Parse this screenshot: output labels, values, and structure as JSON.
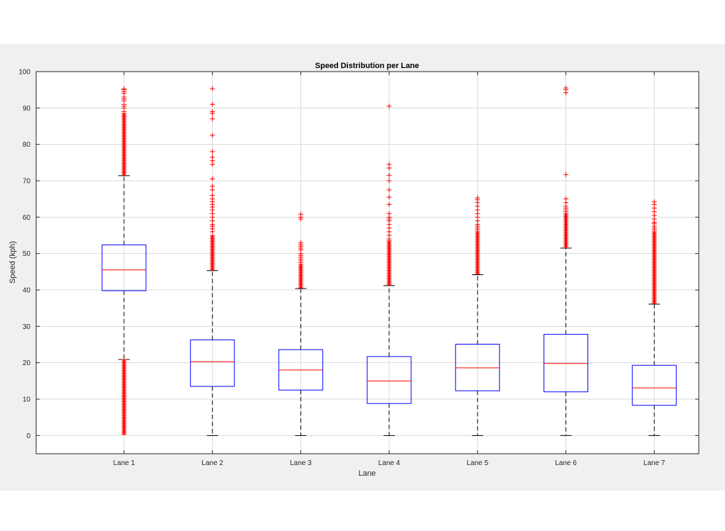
{
  "chart_data": {
    "type": "box",
    "title": "Speed Distribution per Lane",
    "xlabel": "Lane",
    "ylabel": "Speed (kph)",
    "ylim": [
      -5,
      100
    ],
    "yticks": [
      0,
      10,
      20,
      30,
      40,
      50,
      60,
      70,
      80,
      90,
      100
    ],
    "grid": true,
    "colors": {
      "box": "#0000ff",
      "median": "#ff0000",
      "whisker": "#000000",
      "outlier": "#ff0000",
      "grid": "#d9d9d9",
      "axes": "#262626"
    },
    "categories": [
      "Lane 1",
      "Lane 2",
      "Lane 3",
      "Lane 4",
      "Lane 5",
      "Lane 6",
      "Lane 7"
    ],
    "boxes": [
      {
        "q1": 39.8,
        "median": 45.5,
        "q3": 52.4,
        "whisker_low": 20.9,
        "whisker_high": 71.4,
        "outlier_ranges": [
          [
            71.4,
            88.5
          ],
          [
            0.2,
            20.9
          ]
        ],
        "outliers": [
          89,
          90,
          90.5,
          91,
          92,
          92.5,
          93,
          94,
          94.5,
          95,
          95.3
        ]
      },
      {
        "q1": 13.5,
        "median": 20.3,
        "q3": 26.3,
        "whisker_low": 0,
        "whisker_high": 45.3,
        "outlier_ranges": [
          [
            45.3,
            55
          ]
        ],
        "outliers": [
          56,
          56.8,
          57.5,
          58,
          59,
          60,
          61,
          62,
          62.8,
          63.5,
          64.2,
          65,
          66,
          67.5,
          68.5,
          70.5,
          74.5,
          75.5,
          76.5,
          78,
          82.5,
          87,
          88.5,
          89,
          91,
          95.3
        ]
      },
      {
        "q1": 12.5,
        "median": 18,
        "q3": 23.6,
        "whisker_low": 0,
        "whisker_high": 40.4,
        "outlier_ranges": [
          [
            40.4,
            47
          ]
        ],
        "outliers": [
          47.5,
          48,
          48.5,
          49,
          49.5,
          50,
          51,
          51.5,
          52,
          52.5,
          53,
          59.5,
          60,
          60.8
        ]
      },
      {
        "q1": 8.8,
        "median": 15,
        "q3": 21.7,
        "whisker_low": 0,
        "whisker_high": 41.2,
        "outlier_ranges": [
          [
            41.2,
            53.5
          ]
        ],
        "outliers": [
          54,
          55,
          56,
          57,
          58,
          59,
          59.5,
          60,
          61,
          63.5,
          65.5,
          67.5,
          70,
          71.5,
          73.5,
          74.5,
          90.5
        ]
      },
      {
        "q1": 12.3,
        "median": 18.6,
        "q3": 25.1,
        "whisker_low": 0,
        "whisker_high": 44.2,
        "outlier_ranges": [
          [
            44.2,
            56
          ]
        ],
        "outliers": [
          56.5,
          57,
          57.5,
          58,
          59,
          60,
          61,
          62,
          63,
          64,
          64.8,
          65.3
        ]
      },
      {
        "q1": 12,
        "median": 19.8,
        "q3": 27.8,
        "whisker_low": 0,
        "whisker_high": 51.5,
        "outlier_ranges": [
          [
            51.5,
            61
          ]
        ],
        "outliers": [
          61.5,
          62,
          62.5,
          63,
          64,
          65,
          71.7,
          94.2,
          95,
          95.5
        ]
      },
      {
        "q1": 8.3,
        "median": 13.1,
        "q3": 19.3,
        "whisker_low": 0,
        "whisker_high": 36.1,
        "outlier_ranges": [
          [
            36.1,
            56
          ]
        ],
        "outliers": [
          56.5,
          57,
          57.5,
          58.2,
          58.6,
          59.5,
          60.5,
          61.5,
          62.5,
          63.5,
          64.2
        ]
      }
    ]
  }
}
